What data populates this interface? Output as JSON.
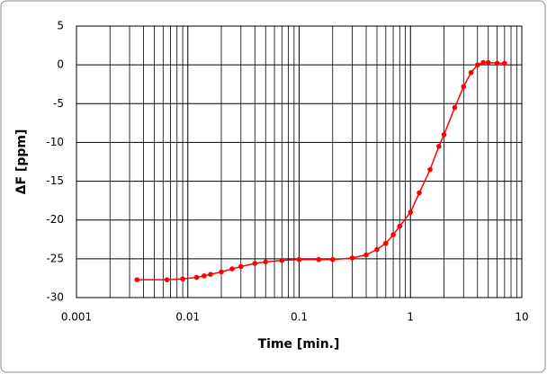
{
  "chart_data": {
    "type": "line",
    "x_label": "Time [min.]",
    "y_label": "ΔF [ppm]",
    "x_scale": "log",
    "grid": true,
    "minor_grid": true,
    "xlim": [
      0.001,
      10
    ],
    "xticks": [
      0.001,
      0.01,
      0.1,
      1,
      10
    ],
    "ylim": [
      -30,
      5
    ],
    "yticks": [
      -30,
      -25,
      -20,
      -15,
      -10,
      -5,
      0,
      5
    ],
    "series": [
      {
        "color": "#ff0000",
        "x": [
          0.0035,
          0.0065,
          0.009,
          0.012,
          0.014,
          0.016,
          0.02,
          0.025,
          0.03,
          0.04,
          0.05,
          0.07,
          0.1,
          0.15,
          0.2,
          0.3,
          0.4,
          0.5,
          0.6,
          0.7,
          0.8,
          1.0,
          1.2,
          1.5,
          1.8,
          2.0,
          2.5,
          3.0,
          3.5,
          4.0,
          4.5,
          5.0,
          6.0,
          7.0
        ],
        "values": [
          -27.7,
          -27.7,
          -27.6,
          -27.4,
          -27.2,
          -27.0,
          -26.7,
          -26.3,
          -26.0,
          -25.6,
          -25.4,
          -25.2,
          -25.1,
          -25.1,
          -25.1,
          -24.9,
          -24.5,
          -23.8,
          -23.0,
          -21.9,
          -20.8,
          -19.0,
          -16.5,
          -13.5,
          -10.5,
          -9.0,
          -5.5,
          -2.8,
          -1.0,
          0.0,
          0.3,
          0.3,
          0.2,
          0.2
        ]
      }
    ]
  }
}
